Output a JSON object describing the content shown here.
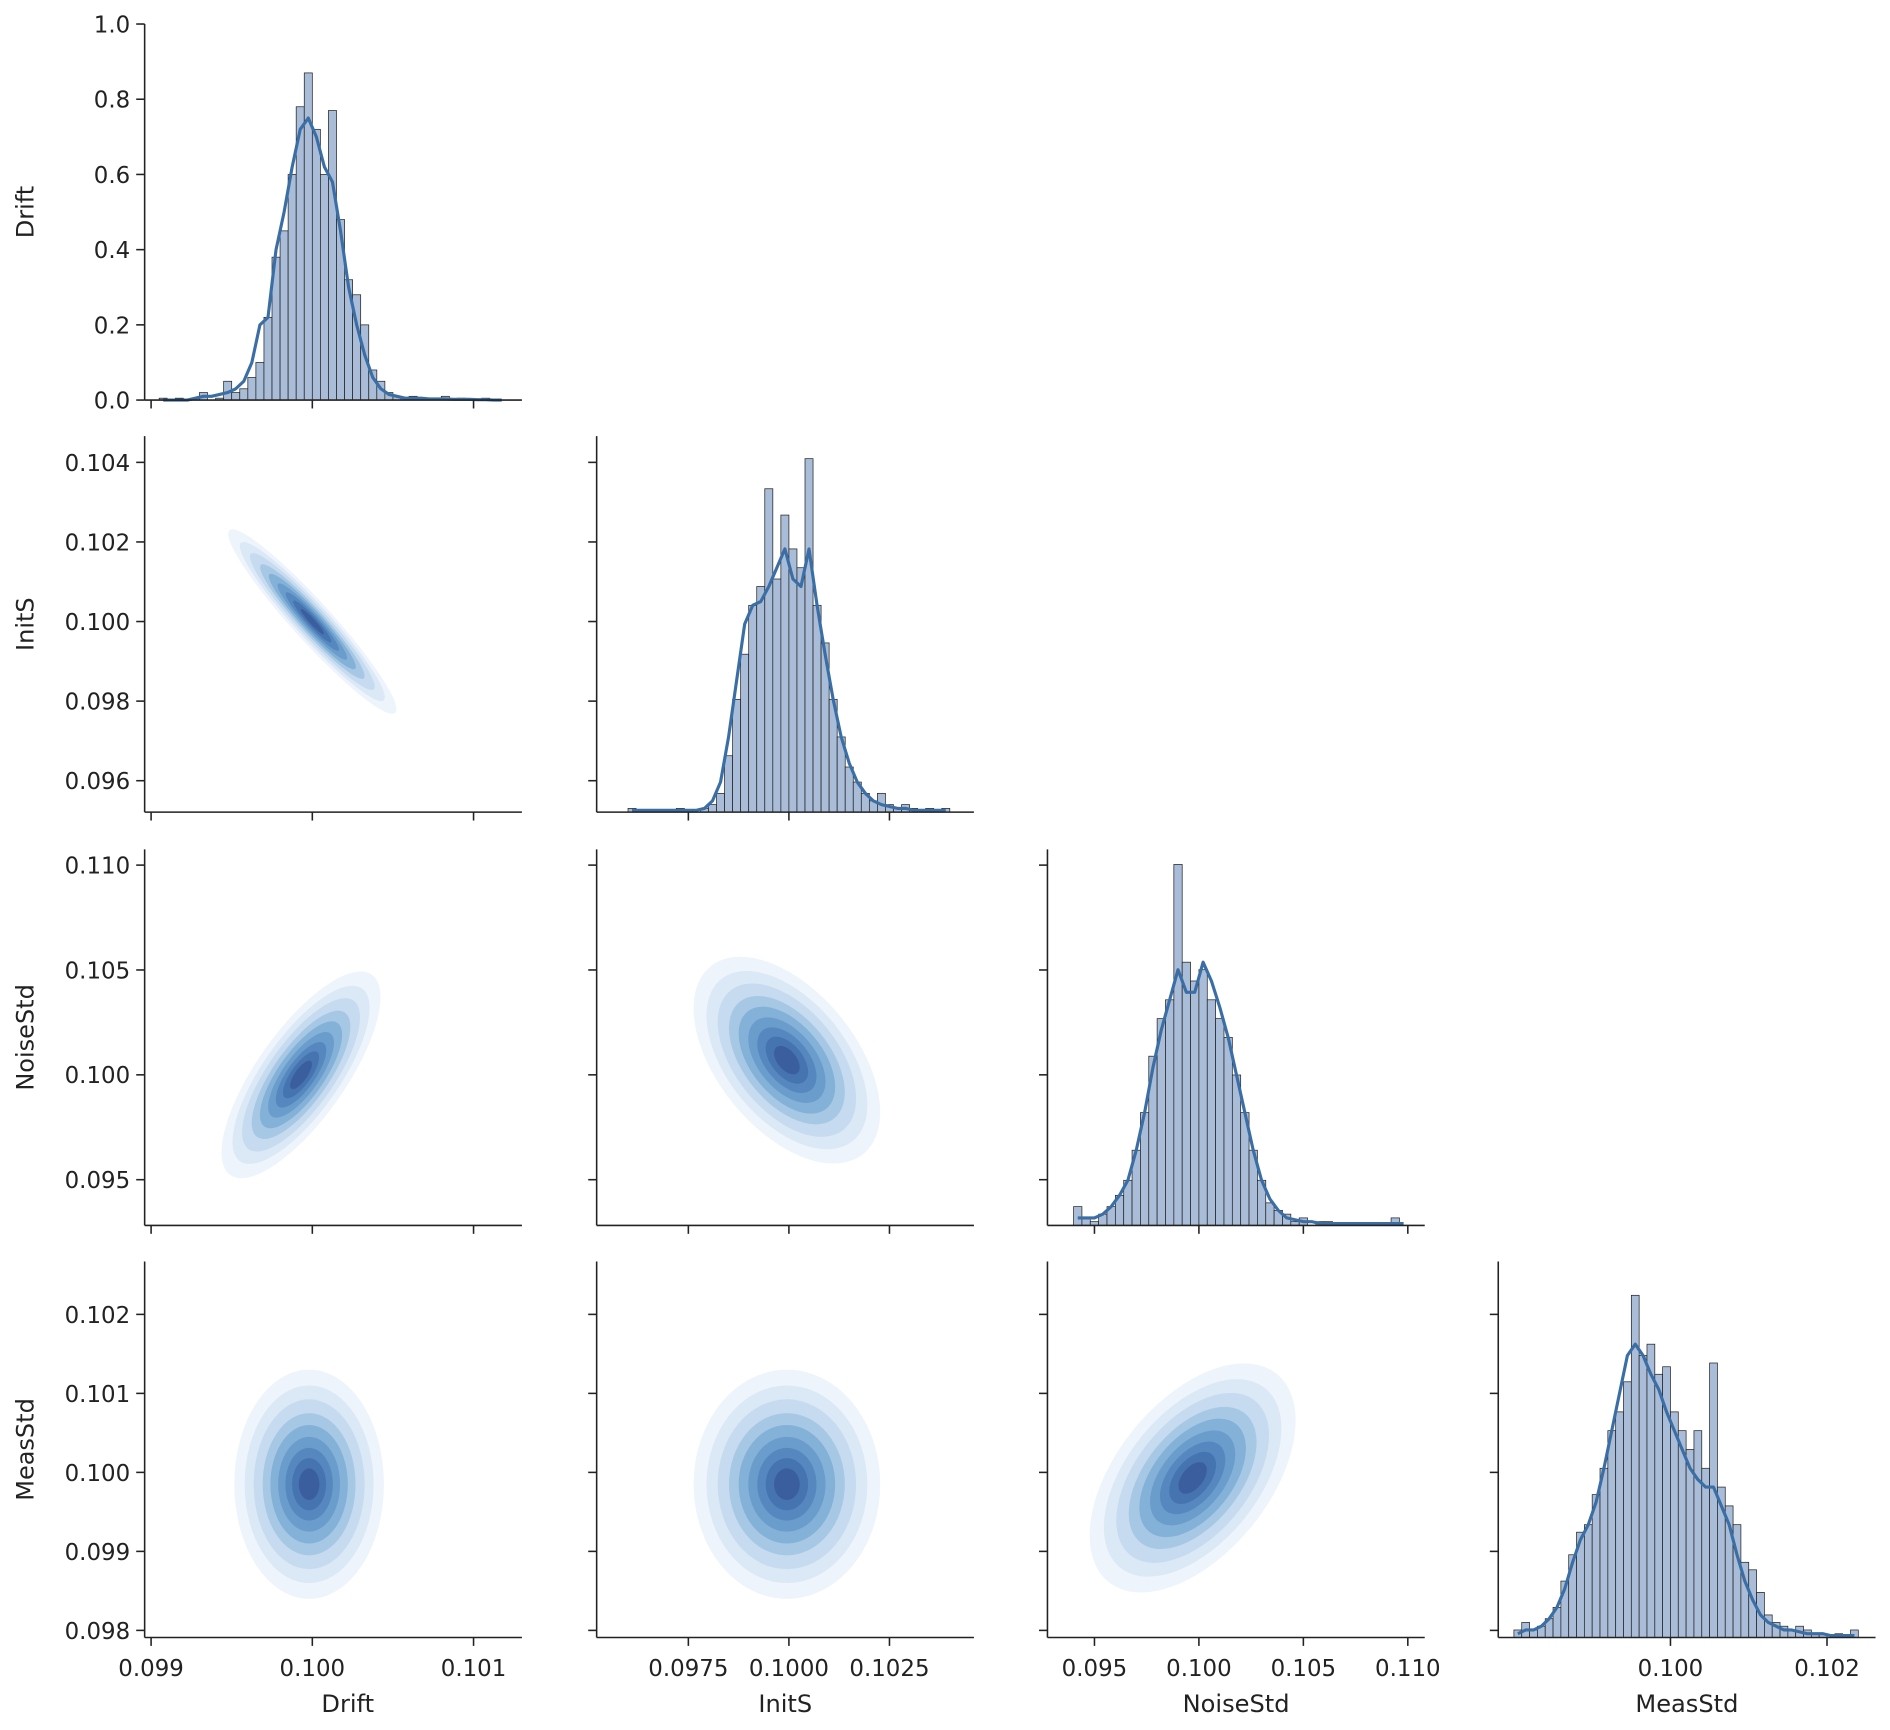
{
  "chart_data": {
    "type": "pairplot",
    "color": "#3a6ea5",
    "bar_color": "#a9bcd8",
    "bar_edge": "#222222",
    "palette": [
      "#eef4fb",
      "#dbe8f5",
      "#c6dbef",
      "#a6c8e4",
      "#84b1d8",
      "#6a9ccc",
      "#5688bf",
      "#4674b0",
      "#3b5f9e"
    ],
    "variables": [
      {
        "name": "Drift",
        "xlim": [
          0.09896,
          0.1013
        ],
        "xticks": [
          0.099,
          {
            "value": 0.1,
            "label": "0.100"
          },
          0.101
        ]
      },
      {
        "name": "InitS",
        "xlim": [
          0.09522,
          0.1046
        ],
        "xticks": [
          0.0975,
          {
            "value": 0.1,
            "label": "0.1000"
          },
          0.1025
        ],
        "ylim": [
          0.09521,
          0.10466
        ],
        "yticks": [
          0.096,
          0.098,
          {
            "value": 0.1,
            "label": "0.100"
          },
          0.102,
          0.104
        ]
      },
      {
        "name": "NoiseStd",
        "xlim": [
          0.09275,
          0.11081
        ],
        "xticks": [
          0.095,
          {
            "value": 0.1,
            "label": "0.100"
          },
          0.105,
          {
            "value": 0.11,
            "label": "0.110"
          }
        ],
        "ylim": [
          0.09282,
          0.11075
        ],
        "yticks": [
          0.095,
          {
            "value": 0.1,
            "label": "0.100"
          },
          0.105,
          {
            "value": 0.11,
            "label": "0.110"
          }
        ]
      },
      {
        "name": "MeasStd",
        "xlim": [
          0.0978,
          0.10262
        ],
        "xticks": [
          {
            "value": 0.1,
            "label": "0.100"
          },
          0.102
        ],
        "ylim": [
          0.09791,
          0.10267
        ],
        "yticks": [
          0.098,
          0.099,
          {
            "value": 0.1,
            "label": "0.100"
          },
          0.101,
          0.102
        ]
      }
    ],
    "diagonal": [
      {
        "type": "histogram",
        "ylim": [
          0,
          1.0
        ],
        "yticks": [
          {
            "value": 0,
            "label": "0.0"
          },
          0.2,
          0.4,
          0.6,
          0.8,
          {
            "value": 1.0,
            "label": "1.0"
          }
        ],
        "bins": [
          0.09905,
          0.0991,
          0.09915,
          0.0992,
          0.09925,
          0.0993,
          0.09935,
          0.0994,
          0.09945,
          0.0995,
          0.09955,
          0.0996,
          0.09965,
          0.0997,
          0.09975,
          0.0998,
          0.09985,
          0.0999,
          0.09995,
          0.1,
          0.10005,
          0.1001,
          0.10015,
          0.1002,
          0.10025,
          0.1003,
          0.10035,
          0.1004,
          0.10045,
          0.1005,
          0.10055,
          0.1006,
          0.10065,
          0.1007,
          0.10075,
          0.1008,
          0.10085,
          0.1009,
          0.10095,
          0.101,
          0.10105,
          0.1011,
          0.10115,
          0.1012
        ],
        "values": [
          0.005,
          0,
          0.005,
          0,
          0.005,
          0.02,
          0,
          0.005,
          0.05,
          0.02,
          0.03,
          0.06,
          0.1,
          0.22,
          0.38,
          0.45,
          0.6,
          0.78,
          0.87,
          0.72,
          0.6,
          0.77,
          0.48,
          0.32,
          0.28,
          0.2,
          0.08,
          0.05,
          0.02,
          0.01,
          0.005,
          0.01,
          0.005,
          0,
          0.005,
          0.01,
          0,
          0.005,
          0,
          0,
          0.005,
          0,
          0
        ],
        "kde": [
          0,
          0,
          0,
          0,
          0.005,
          0.01,
          0.01,
          0.015,
          0.02,
          0.03,
          0.05,
          0.1,
          0.2,
          0.22,
          0.4,
          0.5,
          0.62,
          0.72,
          0.75,
          0.7,
          0.62,
          0.58,
          0.45,
          0.3,
          0.2,
          0.12,
          0.06,
          0.03,
          0.015,
          0.01,
          0.005,
          0.005,
          0.005,
          0.003,
          0.003,
          0.003,
          0.002,
          0.002,
          0.002,
          0.001,
          0.001,
          0,
          0
        ]
      },
      {
        "type": "histogram",
        "ylim": [
          0,
          1
        ],
        "bins": [
          0.096,
          0.0962,
          0.0964,
          0.0966,
          0.0968,
          0.097,
          0.0972,
          0.0974,
          0.0976,
          0.0978,
          0.098,
          0.0982,
          0.0984,
          0.0986,
          0.0988,
          0.099,
          0.0992,
          0.0994,
          0.0996,
          0.0998,
          0.1,
          0.1002,
          0.1004,
          0.1006,
          0.1008,
          0.101,
          0.1012,
          0.1014,
          0.1016,
          0.1018,
          0.102,
          0.1022,
          0.1024,
          0.1026,
          0.1028,
          0.103,
          0.1032,
          0.1034,
          0.1036,
          0.1038,
          0.104
        ],
        "values": [
          0.01,
          0,
          0,
          0,
          0,
          0,
          0.01,
          0,
          0,
          0.01,
          0.02,
          0.05,
          0.15,
          0.3,
          0.42,
          0.55,
          0.6,
          0.86,
          0.62,
          0.79,
          0.7,
          0.65,
          0.94,
          0.55,
          0.45,
          0.3,
          0.2,
          0.12,
          0.08,
          0.05,
          0.03,
          0.05,
          0.02,
          0.01,
          0.02,
          0.01,
          0,
          0.01,
          0,
          0.01
        ],
        "kde": [
          0.005,
          0.005,
          0.005,
          0.005,
          0.005,
          0.005,
          0.005,
          0.005,
          0.005,
          0.01,
          0.03,
          0.08,
          0.2,
          0.35,
          0.5,
          0.55,
          0.56,
          0.6,
          0.65,
          0.7,
          0.62,
          0.6,
          0.7,
          0.55,
          0.42,
          0.3,
          0.2,
          0.13,
          0.08,
          0.05,
          0.03,
          0.02,
          0.015,
          0.01,
          0.01,
          0.005,
          0.005,
          0.005,
          0.005,
          0.005
        ]
      },
      {
        "type": "histogram",
        "ylim": [
          0,
          1
        ],
        "bins": [
          0.094,
          0.0944,
          0.0948,
          0.0952,
          0.0956,
          0.096,
          0.0964,
          0.0968,
          0.0972,
          0.0976,
          0.098,
          0.0984,
          0.0988,
          0.0992,
          0.0996,
          0.1,
          0.1004,
          0.1008,
          0.1012,
          0.1016,
          0.102,
          0.1024,
          0.1028,
          0.1032,
          0.1036,
          0.104,
          0.1044,
          0.1048,
          0.1052,
          0.1056,
          0.106,
          0.1064,
          0.1068,
          0.1072,
          0.1076,
          0.108,
          0.1084,
          0.1088,
          0.1092,
          0.1096,
          0.11
        ],
        "values": [
          0.05,
          0.02,
          0.01,
          0.03,
          0.05,
          0.08,
          0.12,
          0.2,
          0.3,
          0.45,
          0.55,
          0.6,
          0.96,
          0.7,
          0.65,
          0.68,
          0.6,
          0.55,
          0.5,
          0.4,
          0.3,
          0.2,
          0.12,
          0.06,
          0.04,
          0.03,
          0.01,
          0.02,
          0,
          0.01,
          0.01,
          0,
          0,
          0,
          0,
          0,
          0,
          0,
          0.02,
          0
        ],
        "kde": [
          0.02,
          0.02,
          0.02,
          0.03,
          0.05,
          0.08,
          0.12,
          0.2,
          0.3,
          0.42,
          0.52,
          0.6,
          0.68,
          0.62,
          0.62,
          0.7,
          0.65,
          0.58,
          0.5,
          0.4,
          0.3,
          0.2,
          0.12,
          0.07,
          0.04,
          0.02,
          0.015,
          0.01,
          0.01,
          0.005,
          0.005,
          0.005,
          0.005,
          0.005,
          0.005,
          0.005,
          0.005,
          0.005,
          0.005,
          0.005
        ]
      },
      {
        "type": "histogram",
        "ylim": [
          0,
          1
        ],
        "bins": [
          0.098,
          0.0981,
          0.0982,
          0.0983,
          0.0984,
          0.0985,
          0.0986,
          0.0987,
          0.0988,
          0.0989,
          0.099,
          0.0991,
          0.0992,
          0.0993,
          0.0994,
          0.0995,
          0.0996,
          0.0997,
          0.0998,
          0.0999,
          0.1,
          0.1001,
          0.1002,
          0.1003,
          0.1004,
          0.1005,
          0.1006,
          0.1007,
          0.1008,
          0.1009,
          0.101,
          0.1011,
          0.1012,
          0.1013,
          0.1014,
          0.1015,
          0.1016,
          0.1017,
          0.1018,
          0.1019,
          0.102,
          0.1021,
          0.1022,
          0.1023,
          0.1024
        ],
        "values": [
          0.02,
          0.04,
          0.02,
          0.03,
          0.05,
          0.08,
          0.15,
          0.22,
          0.28,
          0.3,
          0.38,
          0.45,
          0.55,
          0.6,
          0.68,
          0.91,
          0.75,
          0.78,
          0.7,
          0.72,
          0.6,
          0.55,
          0.5,
          0.55,
          0.45,
          0.73,
          0.4,
          0.35,
          0.3,
          0.2,
          0.18,
          0.12,
          0.06,
          0.04,
          0.03,
          0.02,
          0.03,
          0.02,
          0.01,
          0.01,
          0,
          0.01,
          0,
          0.02
        ],
        "kde": [
          0.01,
          0.02,
          0.02,
          0.03,
          0.05,
          0.08,
          0.13,
          0.2,
          0.26,
          0.3,
          0.36,
          0.45,
          0.55,
          0.65,
          0.75,
          0.78,
          0.75,
          0.7,
          0.66,
          0.6,
          0.55,
          0.5,
          0.45,
          0.42,
          0.4,
          0.4,
          0.35,
          0.3,
          0.22,
          0.15,
          0.1,
          0.06,
          0.04,
          0.03,
          0.02,
          0.02,
          0.015,
          0.01,
          0.01,
          0.01,
          0.005,
          0.005,
          0.005,
          0.005
        ]
      }
    ],
    "lower": [
      {
        "type": "kde",
        "center": [
          0.1,
          0.1
        ],
        "sd": [
          0.00018,
          0.0008
        ],
        "corr": -0.95
      },
      {
        "type": "kde",
        "center": [
          0.09993,
          0.1
        ],
        "sd": [
          0.00017,
          0.0017
        ],
        "corr": 0.75
      },
      {
        "type": "kde",
        "center": [
          0.09995,
          0.1007
        ],
        "sd": [
          0.0008,
          0.0017
        ],
        "corr": -0.5
      },
      {
        "type": "kde",
        "center": [
          0.09998,
          0.09985
        ],
        "sd": [
          0.00016,
          0.0005
        ],
        "corr": 0
      },
      {
        "type": "kde",
        "center": [
          0.09995,
          0.09985
        ],
        "sd": [
          0.0008,
          0.0005
        ],
        "corr": 0
      },
      {
        "type": "kde",
        "center": [
          0.0997,
          0.09993
        ],
        "sd": [
          0.0017,
          0.0005
        ],
        "corr": 0.5
      }
    ]
  }
}
